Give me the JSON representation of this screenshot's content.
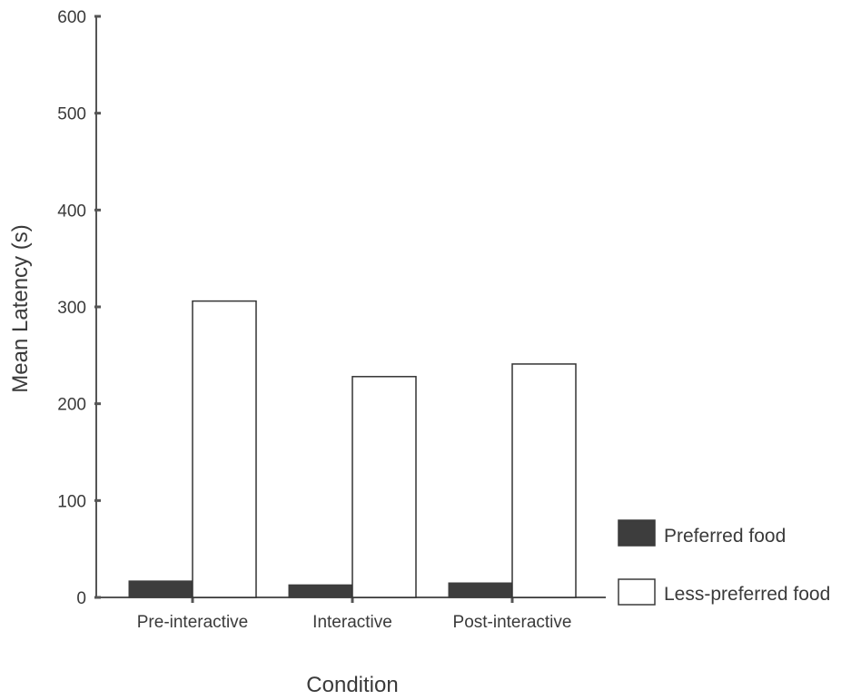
{
  "chart_data": {
    "type": "bar",
    "categories": [
      "Pre-interactive",
      "Interactive",
      "Post-interactive"
    ],
    "series": [
      {
        "name": "Preferred food",
        "values": [
          17,
          13,
          15
        ],
        "color": "#3d3d3d"
      },
      {
        "name": "Less-preferred food",
        "values": [
          306,
          228,
          241
        ],
        "color": "#ffffff"
      }
    ],
    "xlabel": "Condition",
    "ylabel": "Mean Latency (s)",
    "ylim": [
      0,
      600
    ],
    "yticks": [
      0,
      100,
      200,
      300,
      400,
      500,
      600
    ],
    "grid": false,
    "legend_position": "bottom-right",
    "axis_color": "#555555"
  }
}
